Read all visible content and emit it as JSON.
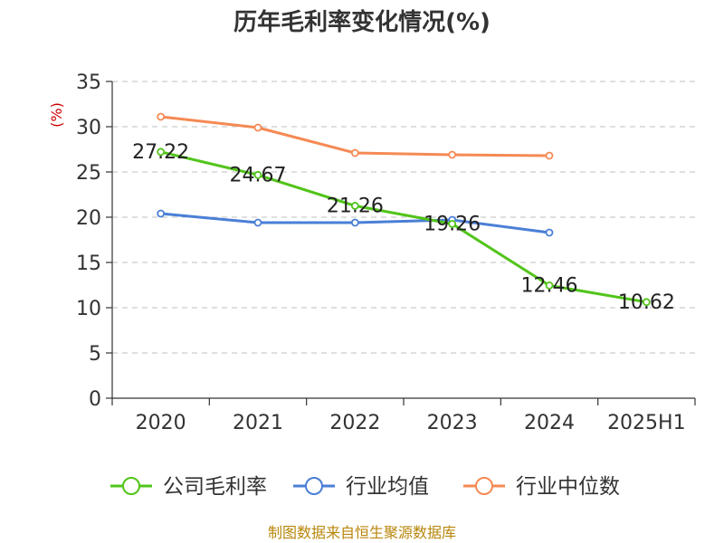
{
  "chart_data": {
    "type": "line",
    "title": "历年毛利率变化情况(%)",
    "ylabel": "(%)",
    "xlabel": "",
    "categories": [
      "2020",
      "2021",
      "2022",
      "2023",
      "2024",
      "2025H1"
    ],
    "ylim": [
      0,
      35
    ],
    "yticks": [
      0,
      5,
      10,
      15,
      20,
      25,
      30,
      35
    ],
    "grid": true,
    "legend_position": "bottom",
    "series": [
      {
        "name": "公司毛利率",
        "color": "#52c41a",
        "values": [
          27.22,
          24.67,
          21.26,
          19.26,
          12.46,
          10.62
        ],
        "show_labels": true
      },
      {
        "name": "行业均值",
        "color": "#4a7fd6",
        "values": [
          20.4,
          19.4,
          19.4,
          19.7,
          18.3,
          null
        ],
        "show_labels": false
      },
      {
        "name": "行业中位数",
        "color": "#f58a54",
        "values": [
          31.1,
          29.9,
          27.1,
          26.9,
          26.8,
          null
        ],
        "show_labels": false
      }
    ]
  },
  "source": {
    "text": "制图数据来自恒生聚源数据库",
    "color": "#b8860b"
  },
  "colors": {
    "axis": "#333333",
    "grid": "#cccccc",
    "ylabel": "#cc0000"
  }
}
